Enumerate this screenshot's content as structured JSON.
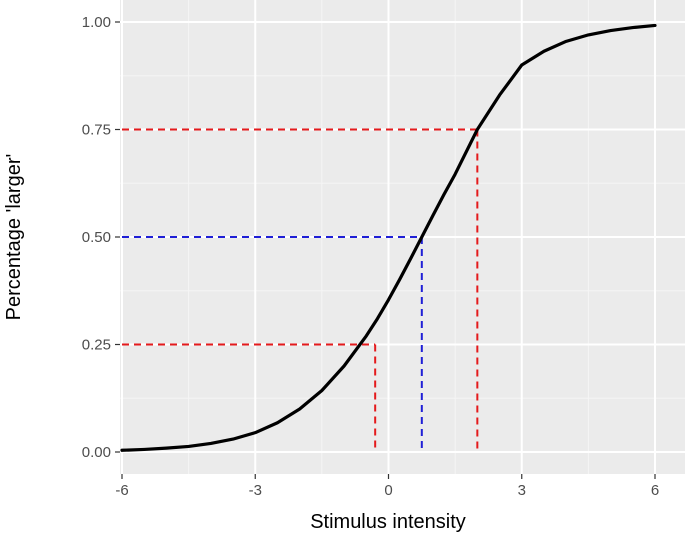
{
  "chart_data": {
    "type": "line",
    "title": "",
    "xlabel": "Stimulus intensity",
    "ylabel": "Percentage 'larger'",
    "xlim": [
      -6.0,
      6.0
    ],
    "ylim": [
      -0.01,
      1.01
    ],
    "x_ticks": [
      -6,
      -3,
      0,
      3,
      6
    ],
    "y_ticks": [
      0.0,
      0.25,
      0.5,
      0.75,
      1.0
    ],
    "x_tick_labels": [
      "-6",
      "-3",
      "0",
      "3",
      "6"
    ],
    "y_tick_labels": [
      "0.00",
      "0.25",
      "0.50",
      "0.75",
      "1.00"
    ],
    "grid": true,
    "legend": "none",
    "series": [
      {
        "color": "#000000",
        "x": [
          -6.0,
          -5.5,
          -5.0,
          -4.5,
          -4.0,
          -3.5,
          -3.0,
          -2.5,
          -2.0,
          -1.5,
          -1.0,
          -0.5,
          -0.25,
          0.0,
          0.25,
          0.5,
          0.75,
          1.0,
          1.25,
          1.5,
          2.0,
          2.5,
          3.0,
          3.5,
          4.0,
          4.5,
          5.0,
          5.5,
          6.0
        ],
        "values": [
          0.004,
          0.006,
          0.009,
          0.013,
          0.02,
          0.03,
          0.045,
          0.068,
          0.1,
          0.143,
          0.2,
          0.27,
          0.31,
          0.354,
          0.401,
          0.45,
          0.5,
          0.55,
          0.599,
          0.646,
          0.75,
          0.83,
          0.9,
          0.932,
          0.955,
          0.97,
          0.98,
          0.987,
          0.992
        ]
      }
    ],
    "reference_lines": [
      {
        "color": "#e41a1c",
        "x": -0.3,
        "y": 0.25
      },
      {
        "color": "#1f1fd6",
        "x": 0.75,
        "y": 0.5
      },
      {
        "color": "#e41a1c",
        "x": 2.0,
        "y": 0.75
      }
    ],
    "colors": {
      "panel": "#ebebeb",
      "grid_major": "#ffffff",
      "grid_minor": "#f5f5f5",
      "tick": "#333333"
    }
  }
}
